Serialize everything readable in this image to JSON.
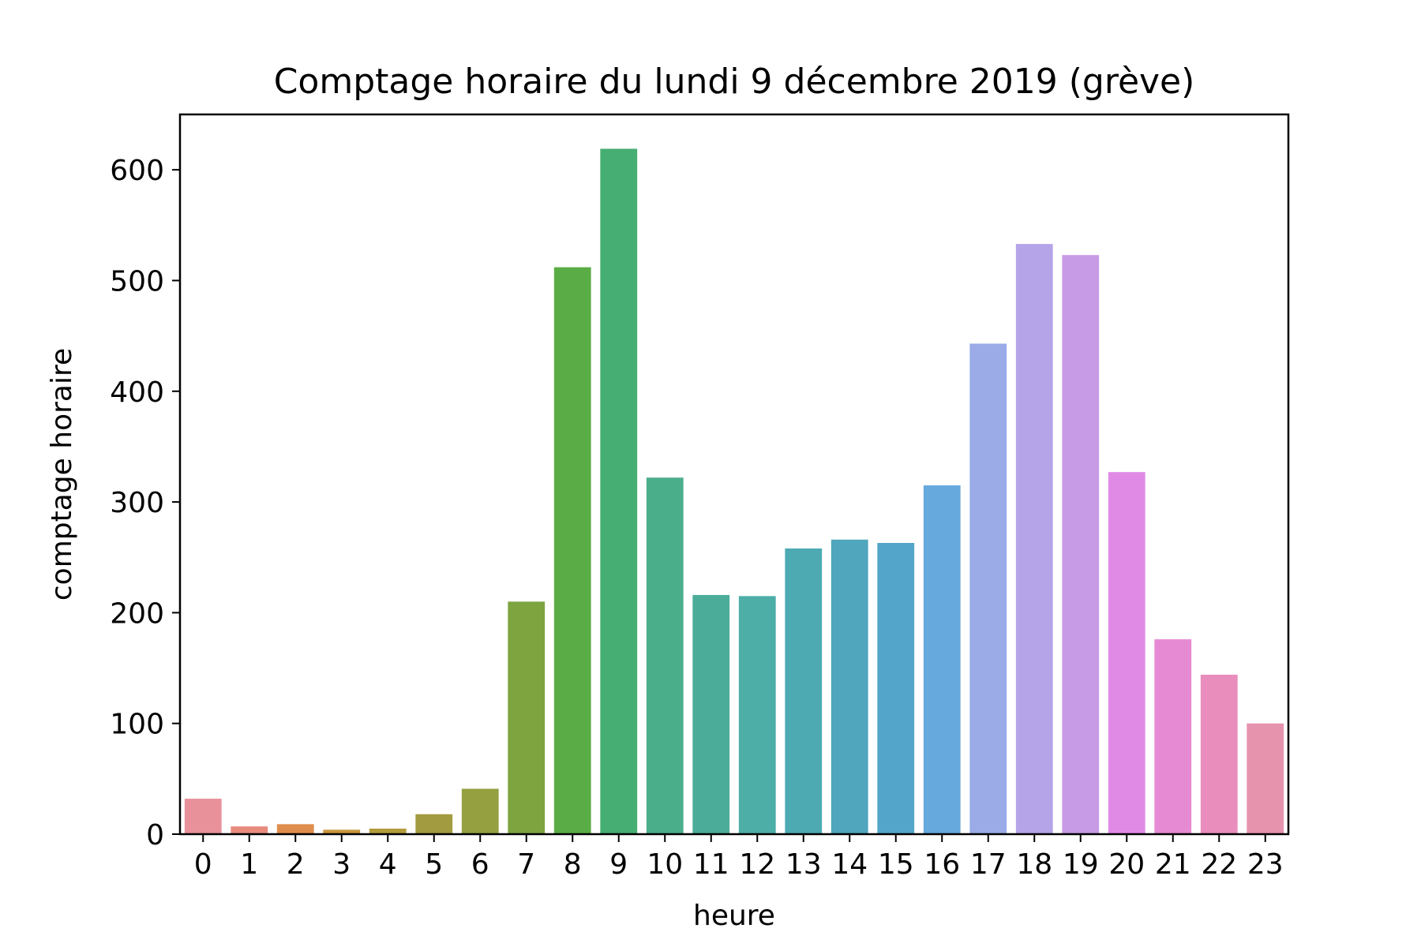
{
  "chart_data": {
    "type": "bar",
    "title": "Comptage horaire du lundi 9 décembre 2019 (grève)",
    "xlabel": "heure",
    "ylabel": "comptage horaire",
    "categories": [
      "0",
      "1",
      "2",
      "3",
      "4",
      "5",
      "6",
      "7",
      "8",
      "9",
      "10",
      "11",
      "12",
      "13",
      "14",
      "15",
      "16",
      "17",
      "18",
      "19",
      "20",
      "21",
      "22",
      "23"
    ],
    "values": [
      32,
      7,
      9,
      4,
      5,
      18,
      41,
      210,
      512,
      619,
      322,
      216,
      215,
      258,
      266,
      263,
      315,
      443,
      533,
      523,
      327,
      176,
      144,
      100
    ],
    "colors": [
      "#e8919a",
      "#e88b7e",
      "#de8d4c",
      "#c9963d",
      "#b39c3c",
      "#a39b3f",
      "#95a040",
      "#7ea440",
      "#5aad46",
      "#46ae72",
      "#4aae8a",
      "#4bad99",
      "#4caea6",
      "#4daab3",
      "#4fa6bd",
      "#53a6c9",
      "#66a9dd",
      "#9aabe8",
      "#b5a4e8",
      "#c89be6",
      "#e08ae6",
      "#e68ad3",
      "#e98dbd",
      "#e693ae"
    ],
    "yticks": [
      0,
      100,
      200,
      300,
      400,
      500,
      600
    ],
    "ylim": [
      0,
      650
    ],
    "grid": false,
    "legend": "none"
  }
}
